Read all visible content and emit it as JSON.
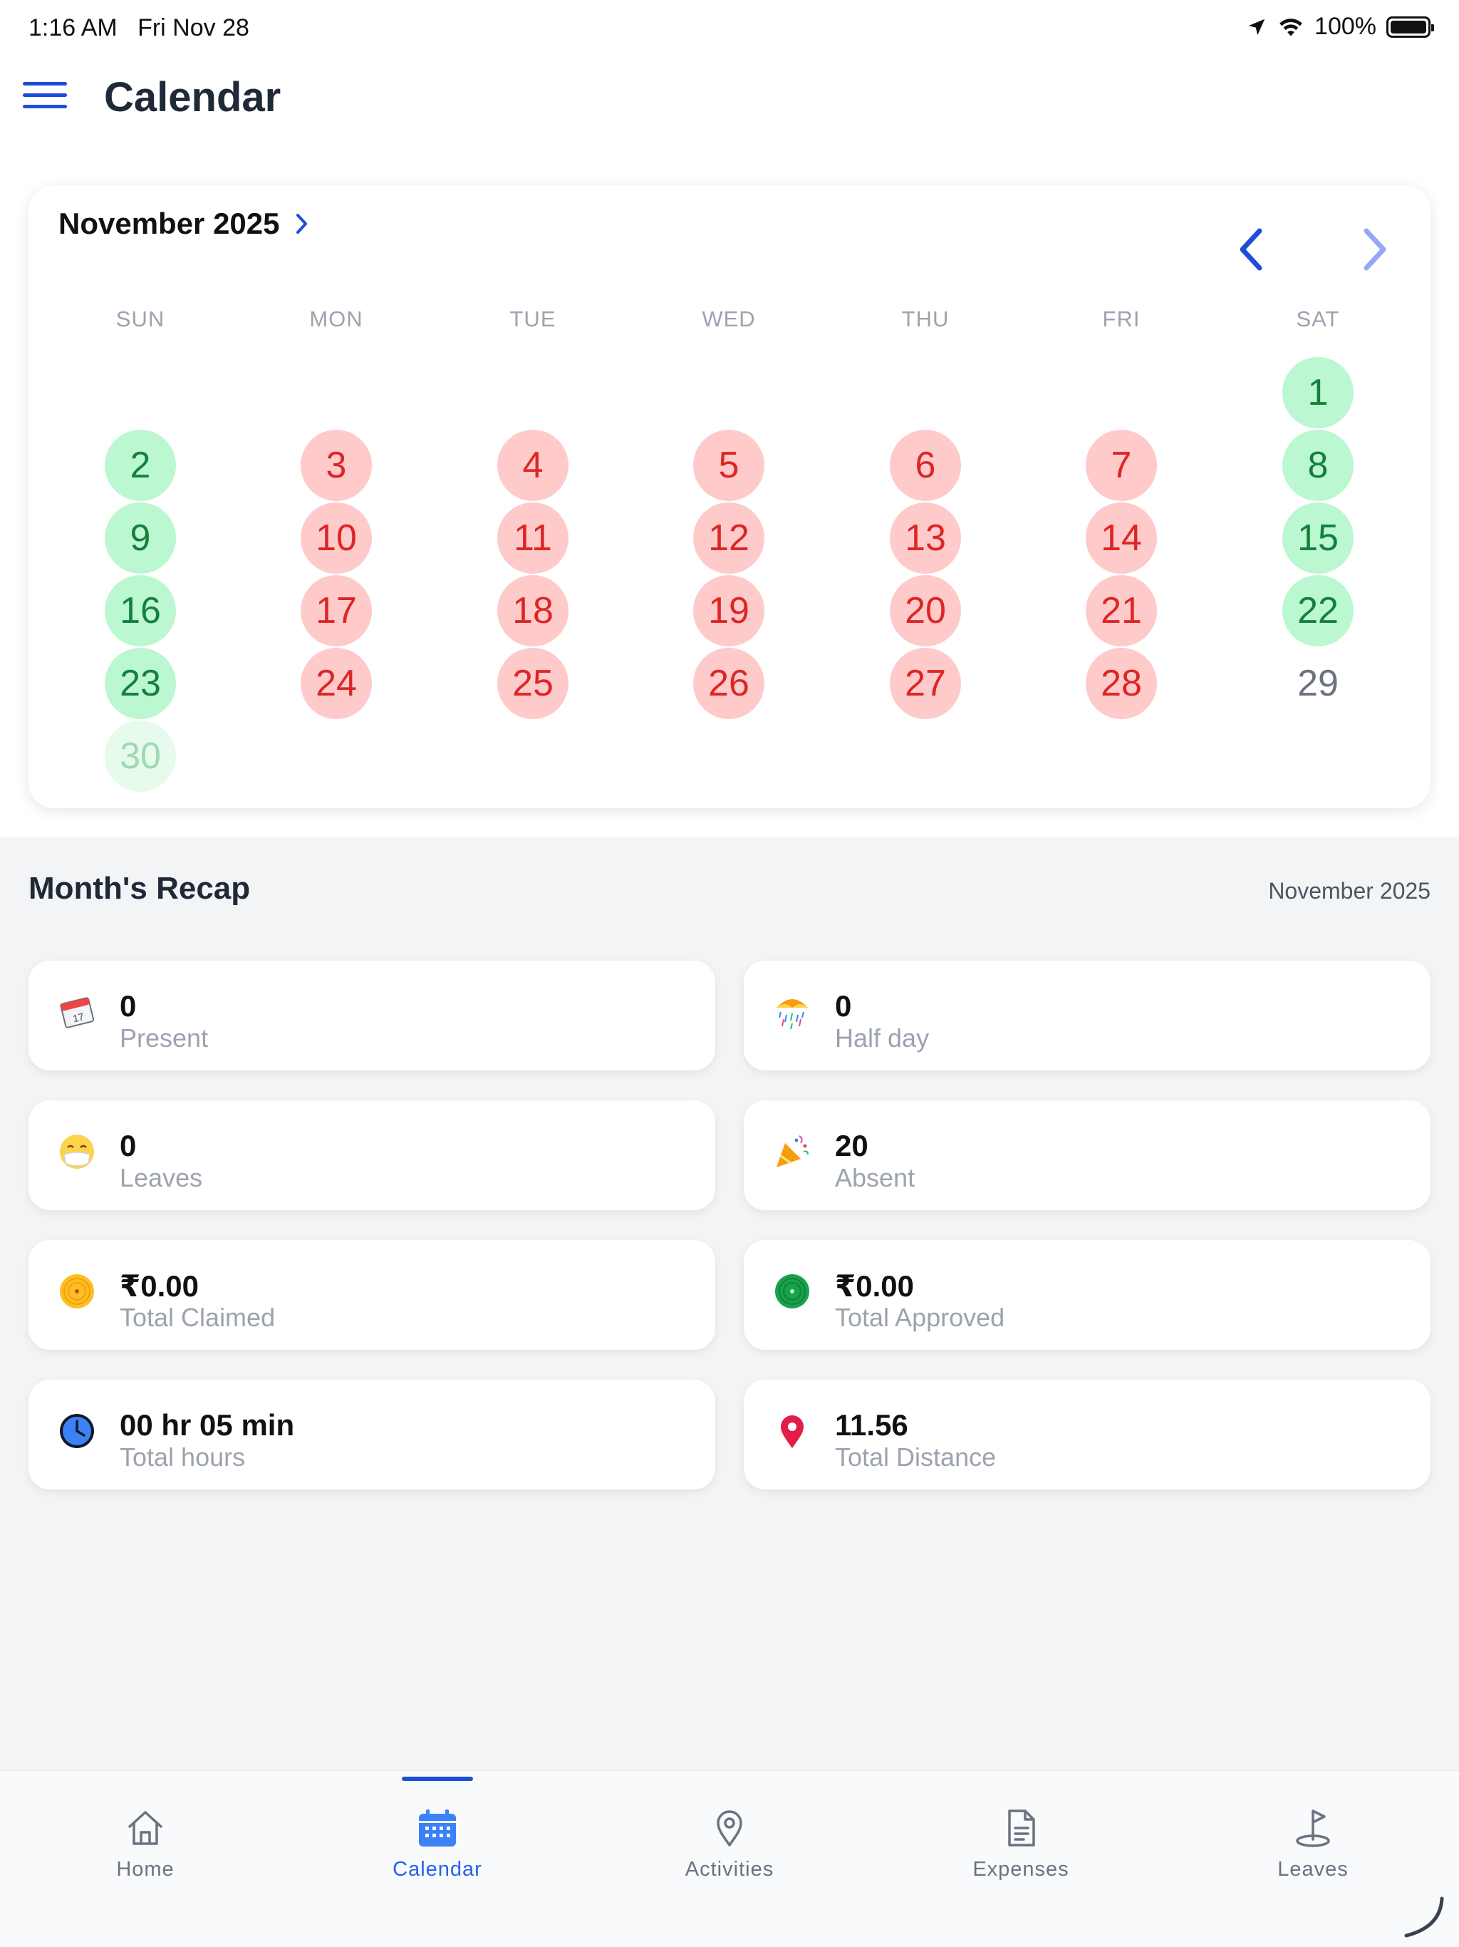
{
  "status_bar": {
    "time": "1:16 AM",
    "date": "Fri Nov 28",
    "battery": "100%"
  },
  "header": {
    "title": "Calendar"
  },
  "calendar": {
    "month_label": "November 2025",
    "weekdays": [
      "SUN",
      "MON",
      "TUE",
      "WED",
      "THU",
      "FRI",
      "SAT"
    ],
    "days": [
      {
        "day": "1",
        "status": "green"
      },
      {
        "day": "2",
        "status": "green"
      },
      {
        "day": "3",
        "status": "red"
      },
      {
        "day": "4",
        "status": "red"
      },
      {
        "day": "5",
        "status": "red"
      },
      {
        "day": "6",
        "status": "red"
      },
      {
        "day": "7",
        "status": "red"
      },
      {
        "day": "8",
        "status": "green"
      },
      {
        "day": "9",
        "status": "green"
      },
      {
        "day": "10",
        "status": "red"
      },
      {
        "day": "11",
        "status": "red"
      },
      {
        "day": "12",
        "status": "red"
      },
      {
        "day": "13",
        "status": "red"
      },
      {
        "day": "14",
        "status": "red"
      },
      {
        "day": "15",
        "status": "green"
      },
      {
        "day": "16",
        "status": "green"
      },
      {
        "day": "17",
        "status": "red"
      },
      {
        "day": "18",
        "status": "red"
      },
      {
        "day": "19",
        "status": "red"
      },
      {
        "day": "20",
        "status": "red"
      },
      {
        "day": "21",
        "status": "red"
      },
      {
        "day": "22",
        "status": "green"
      },
      {
        "day": "23",
        "status": "green"
      },
      {
        "day": "24",
        "status": "red"
      },
      {
        "day": "25",
        "status": "red"
      },
      {
        "day": "26",
        "status": "red"
      },
      {
        "day": "27",
        "status": "red"
      },
      {
        "day": "28",
        "status": "red"
      },
      {
        "day": "29",
        "status": "plain"
      },
      {
        "day": "30",
        "status": "faded"
      }
    ]
  },
  "recap": {
    "title": "Month's Recap",
    "month": "November 2025",
    "stats": [
      {
        "value": "0",
        "label": "Present",
        "icon": "calendar-icon"
      },
      {
        "value": "0",
        "label": "Half day",
        "icon": "umbrella-rain-icon"
      },
      {
        "value": "0",
        "label": "Leaves",
        "icon": "mask-face-icon"
      },
      {
        "value": "20",
        "label": "Absent",
        "icon": "party-popper-icon"
      },
      {
        "value": "₹0.00",
        "label": "Total Claimed",
        "icon": "yellow-target-icon"
      },
      {
        "value": "₹0.00",
        "label": "Total Approved",
        "icon": "green-target-icon"
      },
      {
        "value": "00 hr 05 min",
        "label": "Total hours",
        "icon": "clock-icon"
      },
      {
        "value": "11.56",
        "label": "Total Distance",
        "icon": "location-pin-icon"
      }
    ]
  },
  "bottom_nav": {
    "tabs": [
      {
        "label": "Home",
        "icon": "home-icon"
      },
      {
        "label": "Calendar",
        "icon": "calendar-icon"
      },
      {
        "label": "Activities",
        "icon": "location-pin-icon"
      },
      {
        "label": "Expenses",
        "icon": "document-icon"
      },
      {
        "label": "Leaves",
        "icon": "golf-flag-icon"
      }
    ],
    "active": "Calendar"
  },
  "colors": {
    "accent": "#1d4ed8",
    "present_bg": "#bbf7d0",
    "present_text": "#15803d",
    "absent_bg": "#fecaca",
    "absent_text": "#dc2626"
  }
}
